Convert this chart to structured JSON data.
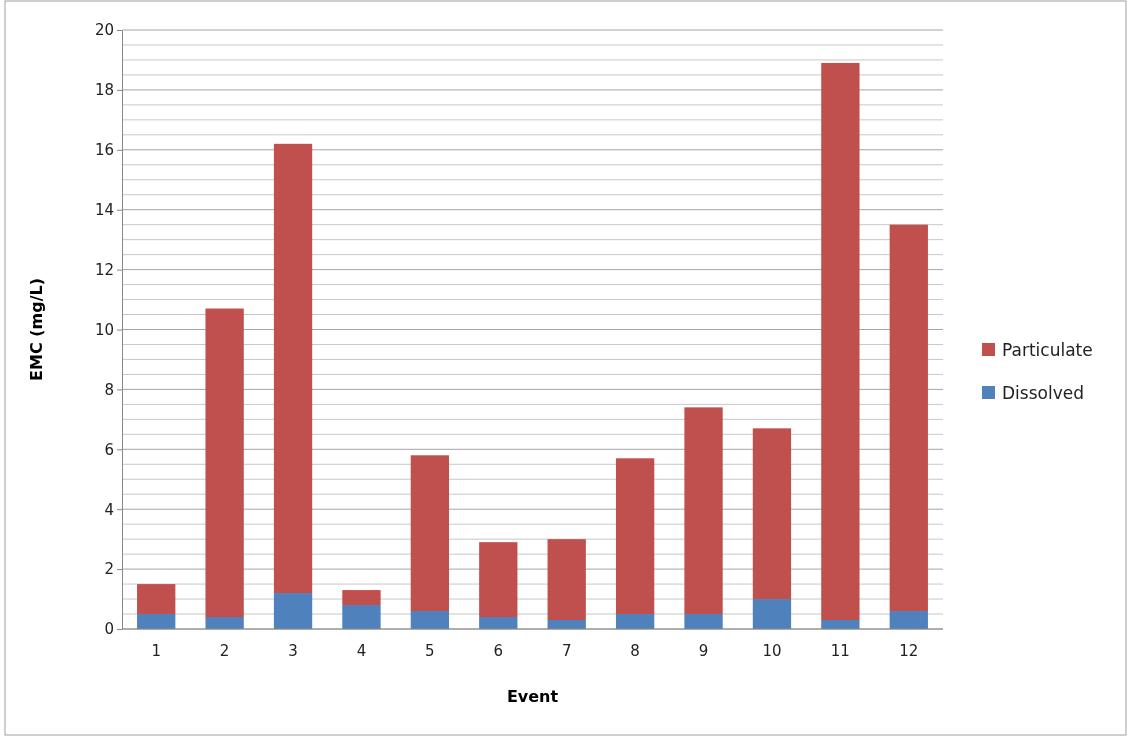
{
  "chart_data": {
    "type": "bar",
    "stacked": true,
    "xlabel": "Event",
    "ylabel": "EMC (mg/L)",
    "categories": [
      "1",
      "2",
      "3",
      "4",
      "5",
      "6",
      "7",
      "8",
      "9",
      "10",
      "11",
      "12"
    ],
    "series": [
      {
        "name": "Dissolved",
        "color": "#4f81bd",
        "values": [
          0.5,
          0.4,
          1.2,
          0.8,
          0.6,
          0.4,
          0.3,
          0.5,
          0.5,
          1.0,
          0.3,
          0.6
        ]
      },
      {
        "name": "Particulate",
        "color": "#c0504d",
        "values": [
          1.0,
          10.3,
          15.0,
          0.5,
          5.2,
          2.5,
          2.7,
          5.2,
          6.9,
          5.7,
          18.6,
          12.9
        ]
      }
    ],
    "ylim": [
      0,
      20
    ],
    "yticks": [
      0,
      {
        "value": 0.5,
        "label": null
      },
      {
        "value": 1,
        "label": null
      },
      {
        "value": 1.5,
        "label": null
      },
      2,
      {
        "value": 2.5,
        "label": null
      },
      {
        "value": 3,
        "label": null
      },
      {
        "value": 3.5,
        "label": null
      },
      4,
      {
        "value": 4.5,
        "label": null
      },
      {
        "value": 5,
        "label": null
      },
      {
        "value": 5.5,
        "label": null
      },
      6,
      {
        "value": 6.5,
        "label": null
      },
      {
        "value": 7,
        "label": null
      },
      {
        "value": 7.5,
        "label": null
      },
      8,
      {
        "value": 8.5,
        "label": null
      },
      {
        "value": 9,
        "label": null
      },
      {
        "value": 9.5,
        "label": null
      },
      10,
      {
        "value": 10.5,
        "label": null
      },
      {
        "value": 11,
        "label": null
      },
      {
        "value": 11.5,
        "label": null
      },
      12,
      {
        "value": 12.5,
        "label": null
      },
      {
        "value": 13,
        "label": null
      },
      {
        "value": 13.5,
        "label": null
      },
      14,
      {
        "value": 14.5,
        "label": null
      },
      {
        "value": 15,
        "label": null
      },
      {
        "value": 15.5,
        "label": null
      },
      16,
      {
        "value": 16.5,
        "label": null
      },
      {
        "value": 17,
        "label": null
      },
      {
        "value": 17.5,
        "label": null
      },
      18,
      {
        "value": 18.5,
        "label": null
      },
      {
        "value": 19,
        "label": null
      },
      {
        "value": 19.5,
        "label": null
      },
      20
    ],
    "grid": "y",
    "legend": "right"
  }
}
